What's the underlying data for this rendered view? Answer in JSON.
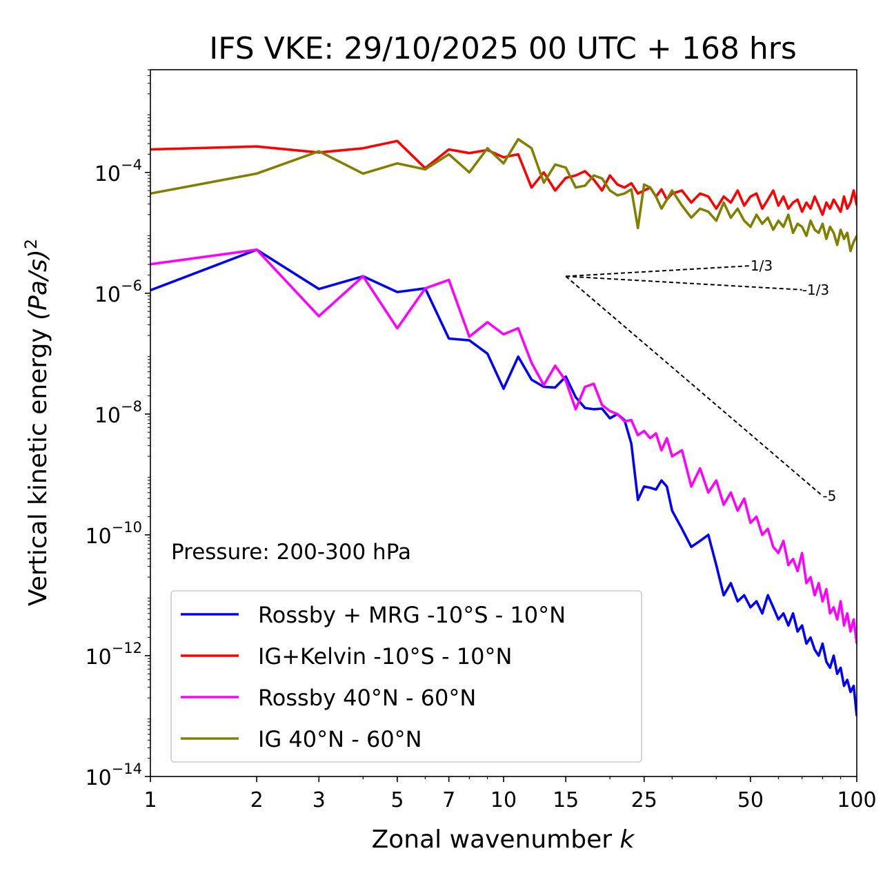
{
  "chart_data": {
    "type": "line",
    "title": "IFS VKE: 29/10/2025 00 UTC + 168 hrs",
    "xlabel": "Zonal wavenumber",
    "xlabel_var": "k",
    "ylabel": "Vertical kinetic energy",
    "ylabel_unit": "(Pa/s)",
    "ylabel_exp": "2",
    "x_scale": "log",
    "y_scale": "log",
    "xlim": [
      1,
      100
    ],
    "ylim_exp": [
      -14,
      -2.3
    ],
    "x_ticks": [
      1,
      2,
      3,
      5,
      7,
      10,
      15,
      25,
      50,
      100
    ],
    "x_tick_labels": [
      "1",
      "2",
      "3",
      "5",
      "7",
      "10",
      "15",
      "25",
      "50",
      "100"
    ],
    "y_ticks_exp": [
      -14,
      -12,
      -10,
      -8,
      -6,
      -4
    ],
    "y_tick_base": "10",
    "y_tick_exponents": [
      "−14",
      "−12",
      "−10",
      "−8",
      "−6",
      "−4"
    ],
    "annotation": "Pressure: 200-300 hPa",
    "legend_position": "lower-left",
    "reference_slopes": [
      {
        "label": "1/3",
        "slope": 0.3333,
        "x_start": 15,
        "x_end": 50,
        "y_start_exp": -5.72
      },
      {
        "label": "-1/3",
        "slope": -0.3333,
        "x_start": 15,
        "x_end": 70,
        "y_start_exp": -5.72
      },
      {
        "label": "-5",
        "slope": -5,
        "x_start": 15,
        "x_end": 80,
        "y_start_exp": -5.72
      }
    ],
    "series": [
      {
        "name": "Rossby + MRG -10°S - 10°N",
        "color": "#0000ff",
        "x": [
          1,
          2,
          3,
          4,
          5,
          6,
          7,
          8,
          9,
          10,
          11,
          12,
          13,
          14,
          15,
          16,
          17,
          18,
          19,
          20,
          21,
          22,
          23,
          24,
          25,
          26,
          27,
          28,
          29,
          30,
          32,
          34,
          36,
          38,
          40,
          42,
          44,
          46,
          48,
          50,
          52,
          54,
          56,
          58,
          60,
          62,
          64,
          66,
          68,
          70,
          72,
          74,
          76,
          78,
          80,
          82,
          84,
          86,
          88,
          90,
          92,
          94,
          96,
          98,
          100
        ],
        "values_log10": [
          -5.95,
          -5.28,
          -5.93,
          -5.72,
          -5.98,
          -5.92,
          -6.75,
          -6.78,
          -7.0,
          -7.58,
          -7.05,
          -7.43,
          -7.55,
          -7.56,
          -7.38,
          -7.72,
          -7.9,
          -7.92,
          -7.91,
          -8.07,
          -8.0,
          -8.1,
          -8.49,
          -9.42,
          -9.2,
          -9.22,
          -9.25,
          -9.1,
          -9.2,
          -9.6,
          -9.9,
          -10.2,
          -10.1,
          -10.0,
          -10.5,
          -11.0,
          -10.8,
          -11.1,
          -11.0,
          -11.2,
          -11.1,
          -11.3,
          -11.0,
          -11.2,
          -11.4,
          -11.3,
          -11.5,
          -11.3,
          -11.6,
          -11.5,
          -11.8,
          -11.7,
          -11.9,
          -12.0,
          -11.8,
          -12.1,
          -12.2,
          -12.0,
          -12.3,
          -12.2,
          -12.5,
          -12.4,
          -12.6,
          -12.5,
          -13.0
        ]
      },
      {
        "name": "IG+Kelvin -10°S - 10°N",
        "color": "#ff0000",
        "x": [
          1,
          2,
          3,
          4,
          5,
          6,
          7,
          8,
          9,
          10,
          11,
          12,
          13,
          14,
          15,
          16,
          17,
          18,
          19,
          20,
          21,
          22,
          23,
          24,
          25,
          26,
          27,
          28,
          29,
          30,
          32,
          34,
          36,
          38,
          40,
          42,
          44,
          46,
          48,
          50,
          52,
          54,
          56,
          58,
          60,
          62,
          64,
          66,
          68,
          70,
          72,
          74,
          76,
          78,
          80,
          82,
          84,
          86,
          88,
          90,
          92,
          94,
          96,
          98,
          100
        ],
        "values_log10": [
          -3.62,
          -3.57,
          -3.67,
          -3.6,
          -3.48,
          -3.93,
          -3.62,
          -3.68,
          -3.63,
          -3.75,
          -3.7,
          -4.25,
          -4.0,
          -4.3,
          -4.09,
          -4.05,
          -3.98,
          -4.12,
          -4.3,
          -4.05,
          -4.2,
          -4.25,
          -4.18,
          -4.35,
          -4.3,
          -4.25,
          -4.4,
          -4.28,
          -4.45,
          -4.35,
          -4.3,
          -4.5,
          -4.35,
          -4.4,
          -4.6,
          -4.4,
          -4.5,
          -4.3,
          -4.55,
          -4.4,
          -4.35,
          -4.6,
          -4.45,
          -4.3,
          -4.55,
          -4.4,
          -4.6,
          -4.5,
          -4.45,
          -4.65,
          -4.5,
          -4.6,
          -4.4,
          -4.55,
          -4.7,
          -4.5,
          -4.6,
          -4.45,
          -4.55,
          -4.65,
          -4.4,
          -4.6,
          -4.5,
          -4.3,
          -4.55
        ]
      },
      {
        "name": "Rossby 40°N - 60°N",
        "color": "#ff00ff",
        "x": [
          1,
          2,
          3,
          4,
          5,
          6,
          7,
          8,
          9,
          10,
          11,
          12,
          13,
          14,
          15,
          16,
          17,
          18,
          19,
          20,
          21,
          22,
          23,
          24,
          25,
          26,
          27,
          28,
          29,
          30,
          32,
          34,
          36,
          38,
          40,
          42,
          44,
          46,
          48,
          50,
          52,
          54,
          56,
          58,
          60,
          62,
          64,
          66,
          68,
          70,
          72,
          74,
          76,
          78,
          80,
          82,
          84,
          86,
          88,
          90,
          92,
          94,
          96,
          98,
          100
        ],
        "values_log10": [
          -5.52,
          -5.28,
          -6.38,
          -5.72,
          -6.58,
          -5.92,
          -5.78,
          -6.72,
          -6.48,
          -6.68,
          -6.58,
          -7.15,
          -7.52,
          -7.2,
          -7.45,
          -7.92,
          -7.55,
          -7.5,
          -7.85,
          -7.95,
          -8.0,
          -8.12,
          -8.1,
          -8.35,
          -8.28,
          -8.4,
          -8.32,
          -8.6,
          -8.4,
          -8.7,
          -8.6,
          -9.2,
          -8.9,
          -9.3,
          -9.1,
          -9.5,
          -9.3,
          -9.6,
          -9.4,
          -9.8,
          -9.7,
          -10.0,
          -9.9,
          -10.2,
          -10.3,
          -10.1,
          -10.5,
          -10.4,
          -10.6,
          -10.3,
          -10.8,
          -10.7,
          -11.0,
          -10.8,
          -11.1,
          -10.9,
          -11.3,
          -11.2,
          -11.4,
          -11.1,
          -11.5,
          -11.3,
          -11.6,
          -11.4,
          -11.8
        ]
      },
      {
        "name": "IG 40°N - 60°N",
        "color": "#808000",
        "x": [
          1,
          2,
          3,
          4,
          5,
          6,
          7,
          8,
          9,
          10,
          11,
          12,
          13,
          14,
          15,
          16,
          17,
          18,
          19,
          20,
          21,
          22,
          23,
          24,
          25,
          26,
          27,
          28,
          29,
          30,
          32,
          34,
          36,
          38,
          40,
          42,
          44,
          46,
          48,
          50,
          52,
          54,
          56,
          58,
          60,
          62,
          64,
          66,
          68,
          70,
          72,
          74,
          76,
          78,
          80,
          82,
          84,
          86,
          88,
          90,
          92,
          94,
          96,
          98,
          100
        ],
        "values_log10": [
          -4.35,
          -4.02,
          -3.65,
          -4.02,
          -3.85,
          -3.95,
          -3.7,
          -4.0,
          -3.6,
          -3.85,
          -3.45,
          -3.6,
          -4.17,
          -3.87,
          -3.92,
          -4.25,
          -4.22,
          -4.05,
          -4.1,
          -4.3,
          -4.38,
          -4.35,
          -4.28,
          -4.92,
          -4.2,
          -4.25,
          -4.4,
          -4.6,
          -4.45,
          -4.3,
          -4.55,
          -4.75,
          -4.6,
          -4.65,
          -4.8,
          -4.5,
          -4.75,
          -4.6,
          -4.8,
          -4.9,
          -4.7,
          -4.85,
          -4.75,
          -4.95,
          -4.8,
          -4.9,
          -4.7,
          -5.0,
          -4.85,
          -4.9,
          -5.05,
          -4.8,
          -4.95,
          -5.0,
          -4.85,
          -5.1,
          -4.9,
          -5.0,
          -5.2,
          -4.95,
          -5.1,
          -5.0,
          -5.3,
          -5.15,
          -5.05
        ]
      }
    ]
  }
}
